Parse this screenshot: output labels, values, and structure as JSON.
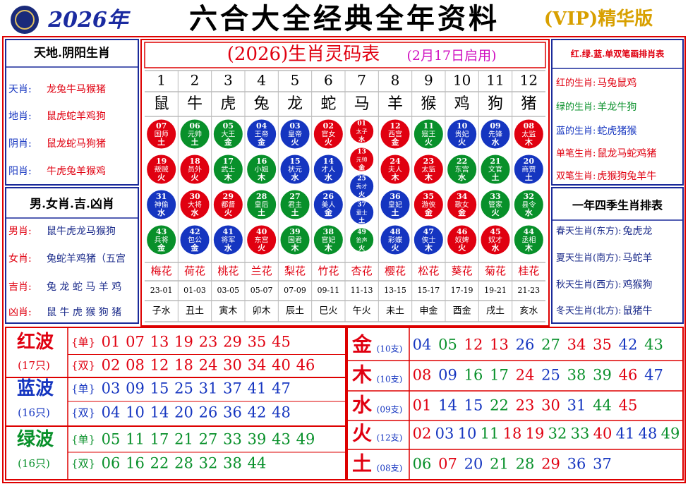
{
  "header": {
    "year": "2026年",
    "title": "六合大全经典全年资料",
    "badge": "(VIP)精华版"
  },
  "left_panels": [
    {
      "title": "天地.阴阳生肖",
      "rows": [
        {
          "label": "天肖:",
          "value": "龙兔牛马猴猪"
        },
        {
          "label": "地肖:",
          "value": "鼠虎蛇羊鸡狗"
        },
        {
          "label": "阴肖:",
          "value": "鼠龙蛇马狗猪"
        },
        {
          "label": "阳肖:",
          "value": "牛虎兔羊猴鸡"
        }
      ]
    },
    {
      "title": "男.女肖.吉.凶肖",
      "rows": [
        {
          "label": "男肖:",
          "value": "鼠牛虎龙马猴狗"
        },
        {
          "label": "女肖:",
          "value": "兔蛇羊鸡猪（五宫"
        },
        {
          "label": "吉肖:",
          "value": "兔 龙 蛇 马 羊 鸡"
        },
        {
          "label": "凶肖:",
          "value": "鼠 牛 虎 猴 狗 猪"
        }
      ]
    }
  ],
  "center": {
    "title": "(2026)生肖灵码表",
    "subtitle": "(2月17日启用)",
    "columns": [
      {
        "index": 1,
        "zodiac": "鼠",
        "balls": [
          {
            "number": "07",
            "name": "国师",
            "element": "土"
          },
          {
            "number": "19",
            "name": "叛贼",
            "element": "火"
          },
          {
            "number": "31",
            "name": "神偷",
            "element": "水"
          },
          {
            "number": "43",
            "name": "兵将",
            "element": "金"
          }
        ],
        "flower": "梅花",
        "hours": "23-01",
        "branch": "子水"
      },
      {
        "index": 2,
        "zodiac": "牛",
        "balls": [
          {
            "number": "06",
            "name": "元帅",
            "element": "土"
          },
          {
            "number": "18",
            "name": "员外",
            "element": "火"
          },
          {
            "number": "30",
            "name": "大将",
            "element": "水"
          },
          {
            "number": "42",
            "name": "包公",
            "element": "金"
          }
        ],
        "flower": "荷花",
        "hours": "01-03",
        "branch": "丑土"
      },
      {
        "index": 3,
        "zodiac": "虎",
        "balls": [
          {
            "number": "05",
            "name": "大王",
            "element": "金"
          },
          {
            "number": "17",
            "name": "武士",
            "element": "木"
          },
          {
            "number": "29",
            "name": "都督",
            "element": "火"
          },
          {
            "number": "41",
            "name": "将军",
            "element": "水"
          }
        ],
        "flower": "桃花",
        "hours": "03-05",
        "branch": "寅木"
      },
      {
        "index": 4,
        "zodiac": "兔",
        "balls": [
          {
            "number": "04",
            "name": "王帝",
            "element": "金"
          },
          {
            "number": "16",
            "name": "小姐",
            "element": "木"
          },
          {
            "number": "28",
            "name": "皇后",
            "element": "土"
          },
          {
            "number": "40",
            "name": "东宫",
            "element": "火"
          }
        ],
        "flower": "兰花",
        "hours": "05-07",
        "branch": "卯木"
      },
      {
        "index": 5,
        "zodiac": "龙",
        "balls": [
          {
            "number": "03",
            "name": "皇帝",
            "element": "火"
          },
          {
            "number": "15",
            "name": "状元",
            "element": "水"
          },
          {
            "number": "27",
            "name": "君主",
            "element": "土"
          },
          {
            "number": "39",
            "name": "国君",
            "element": "木"
          }
        ],
        "flower": "梨花",
        "hours": "07-09",
        "branch": "辰土"
      },
      {
        "index": 6,
        "zodiac": "蛇",
        "balls": [
          {
            "number": "02",
            "name": "官女",
            "element": "火"
          },
          {
            "number": "14",
            "name": "才人",
            "element": "水"
          },
          {
            "number": "26",
            "name": "美人",
            "element": "金"
          },
          {
            "number": "38",
            "name": "官妃",
            "element": "木"
          }
        ],
        "flower": "竹花",
        "hours": "09-11",
        "branch": "巳火"
      },
      {
        "index": 7,
        "zodiac": "马",
        "balls": [
          {
            "number": "01",
            "name": "太子",
            "element": "水"
          },
          {
            "number": "13",
            "name": "元帅",
            "element": "金"
          },
          {
            "number": "25",
            "name": "秀才",
            "element": "火"
          },
          {
            "number": "37",
            "name": "童士",
            "element": "土"
          },
          {
            "number": "49",
            "name": "笛声",
            "element": "火"
          }
        ],
        "flower": "杏花",
        "hours": "11-13",
        "branch": "午火"
      },
      {
        "index": 8,
        "zodiac": "羊",
        "balls": [
          {
            "number": "12",
            "name": "西宫",
            "element": "金"
          },
          {
            "number": "24",
            "name": "夫人",
            "element": "木"
          },
          {
            "number": "36",
            "name": "皇妃",
            "element": "土"
          },
          {
            "number": "48",
            "name": "彩蝶",
            "element": "火"
          }
        ],
        "flower": "樱花",
        "hours": "13-15",
        "branch": "未土"
      },
      {
        "index": 9,
        "zodiac": "猴",
        "balls": [
          {
            "number": "11",
            "name": "寇王",
            "element": "火"
          },
          {
            "number": "23",
            "name": "太监",
            "element": "木"
          },
          {
            "number": "35",
            "name": "游侠",
            "element": "金"
          },
          {
            "number": "47",
            "name": "侠士",
            "element": "木"
          }
        ],
        "flower": "松花",
        "hours": "15-17",
        "branch": "申金"
      },
      {
        "index": 10,
        "zodiac": "鸡",
        "balls": [
          {
            "number": "10",
            "name": "贵妃",
            "element": "火"
          },
          {
            "number": "22",
            "name": "东宫",
            "element": "水"
          },
          {
            "number": "34",
            "name": "歌女",
            "element": "金"
          },
          {
            "number": "46",
            "name": "奴婢",
            "element": "火"
          }
        ],
        "flower": "葵花",
        "hours": "17-19",
        "branch": "酉金"
      },
      {
        "index": 11,
        "zodiac": "狗",
        "balls": [
          {
            "number": "09",
            "name": "先锋",
            "element": "水"
          },
          {
            "number": "21",
            "name": "文官",
            "element": "土"
          },
          {
            "number": "33",
            "name": "管家",
            "element": "火"
          },
          {
            "number": "45",
            "name": "奴才",
            "element": "水"
          }
        ],
        "flower": "菊花",
        "hours": "19-21",
        "branch": "戌土"
      },
      {
        "index": 12,
        "zodiac": "猪",
        "balls": [
          {
            "number": "08",
            "name": "太监",
            "element": "木"
          },
          {
            "number": "20",
            "name": "商贾",
            "element": "土"
          },
          {
            "number": "32",
            "name": "县令",
            "element": "水"
          },
          {
            "number": "44",
            "name": "丞相",
            "element": "木"
          }
        ],
        "flower": "桂花",
        "hours": "21-23",
        "branch": "亥水"
      }
    ]
  },
  "right_panels": [
    {
      "title": "红.绿.蓝.单双笔画排肖表",
      "rows": [
        {
          "label": "红的生肖:",
          "value": "马兔鼠鸡"
        },
        {
          "label": "绿的生肖:",
          "value": "羊龙牛狗"
        },
        {
          "label": "蓝的生肖:",
          "value": "蛇虎猪猴"
        },
        {
          "label": "单笔生肖:",
          "value": "鼠龙马蛇鸡猪"
        },
        {
          "label": "双笔生肖:",
          "value": "虎猴狗兔羊牛"
        }
      ]
    },
    {
      "title": "一年四季生肖排表",
      "rows": [
        {
          "label": "春天生肖(东方):",
          "value": "兔虎龙"
        },
        {
          "label": "夏天生肖(南方):",
          "value": "马蛇羊"
        },
        {
          "label": "秋天生肖(西方):",
          "value": "鸡猴狗"
        },
        {
          "label": "冬天生肖(北方):",
          "value": "鼠猪牛"
        }
      ]
    }
  ],
  "waves": [
    {
      "name": "红波",
      "count": "(17只)",
      "rows": [
        {
          "label": "{单}",
          "numbers": [
            "01",
            "07",
            "13",
            "19",
            "23",
            "29",
            "35",
            "45"
          ]
        },
        {
          "label": "{双}",
          "numbers": [
            "02",
            "08",
            "12",
            "18",
            "24",
            "30",
            "34",
            "40",
            "46"
          ]
        }
      ]
    },
    {
      "name": "蓝波",
      "count": "(16只)",
      "rows": [
        {
          "label": "{单}",
          "numbers": [
            "03",
            "09",
            "15",
            "25",
            "31",
            "37",
            "41",
            "47"
          ]
        },
        {
          "label": "{双}",
          "numbers": [
            "04",
            "10",
            "14",
            "20",
            "26",
            "36",
            "42",
            "48"
          ]
        }
      ]
    },
    {
      "name": "绿波",
      "count": "(16只)",
      "rows": [
        {
          "label": "{单}",
          "numbers": [
            "05",
            "11",
            "17",
            "21",
            "27",
            "33",
            "39",
            "43",
            "49"
          ]
        },
        {
          "label": "{双}",
          "numbers": [
            "06",
            "16",
            "22",
            "28",
            "32",
            "38",
            "44"
          ]
        }
      ]
    }
  ],
  "elements": [
    {
      "name": "金",
      "count": "(10支)",
      "numbers": [
        "04",
        "05",
        "12",
        "13",
        "26",
        "27",
        "34",
        "35",
        "42",
        "43"
      ]
    },
    {
      "name": "木",
      "count": "(10支)",
      "numbers": [
        "08",
        "09",
        "16",
        "17",
        "24",
        "25",
        "38",
        "39",
        "46",
        "47"
      ]
    },
    {
      "name": "水",
      "count": "(09支)",
      "numbers": [
        "01",
        "14",
        "15",
        "22",
        "23",
        "30",
        "31",
        "44",
        "45"
      ]
    },
    {
      "name": "火",
      "count": "(12支)",
      "numbers": [
        "02",
        "03",
        "10",
        "11",
        "18",
        "19",
        "32",
        "33",
        "40",
        "41",
        "48",
        "49"
      ]
    },
    {
      "name": "土",
      "count": "(08支)",
      "numbers": [
        "06",
        "07",
        "20",
        "21",
        "28",
        "29",
        "36",
        "37"
      ]
    }
  ]
}
